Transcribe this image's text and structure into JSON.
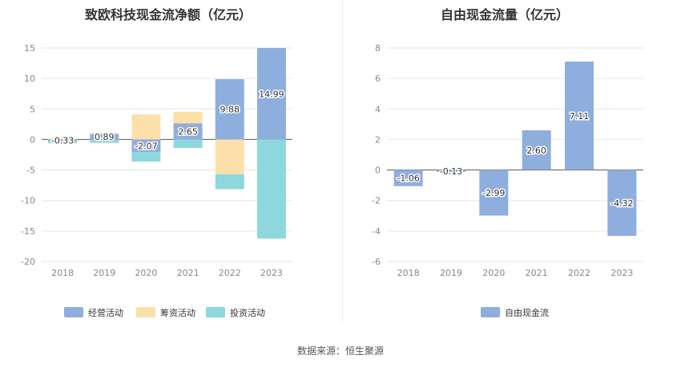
{
  "source": "数据来源：恒生聚源",
  "chart_data": [
    {
      "type": "bar",
      "stacked": true,
      "title": "致欧科技现金流净额（亿元）",
      "categories": [
        "2018",
        "2019",
        "2020",
        "2021",
        "2022",
        "2023"
      ],
      "ylim": [
        -20,
        15
      ],
      "yticks": [
        15,
        10,
        5,
        0,
        -5,
        -10,
        -15,
        -20
      ],
      "grid": true,
      "legend_position": "bottom",
      "series": [
        {
          "name": "经营活动",
          "color": "#8eaedd",
          "values": [
            -0.33,
            0.89,
            -2.07,
            2.65,
            9.88,
            14.99
          ],
          "labels": [
            "-0.33",
            "0.89",
            "-2.07",
            "2.65",
            "9.88",
            "14.99"
          ]
        },
        {
          "name": "筹资活动",
          "color": "#fddfaa",
          "values": [
            0.15,
            0.2,
            4.1,
            1.9,
            -5.7,
            0.0
          ]
        },
        {
          "name": "投资活动",
          "color": "#8ed7dd",
          "values": [
            -0.3,
            -0.55,
            -1.55,
            -1.4,
            -2.45,
            -16.25
          ]
        }
      ]
    },
    {
      "type": "bar",
      "title": "自由现金流量（亿元）",
      "categories": [
        "2018",
        "2019",
        "2020",
        "2021",
        "2022",
        "2023"
      ],
      "ylim": [
        -6,
        8
      ],
      "yticks": [
        8,
        6,
        4,
        2,
        0,
        -2,
        -4,
        -6
      ],
      "grid": true,
      "legend_position": "bottom",
      "series": [
        {
          "name": "自由现金流",
          "color": "#8eaedd",
          "values": [
            -1.06,
            -0.13,
            -2.99,
            2.6,
            7.11,
            -4.32
          ],
          "labels": [
            "-1.06",
            "-0.13",
            "-2.99",
            "2.60",
            "7.11",
            "-4.32"
          ]
        }
      ]
    }
  ]
}
